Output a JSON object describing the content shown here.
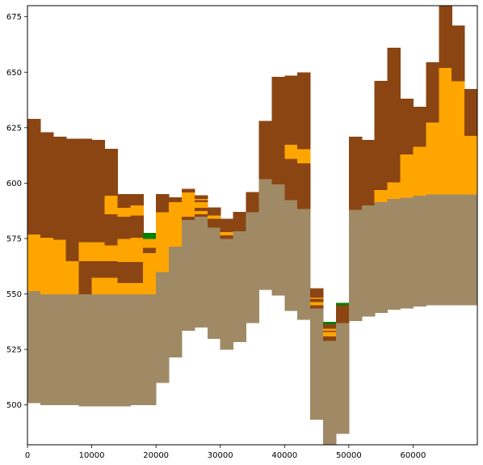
{
  "chart_data": {
    "type": "stacked-bar-cross-section",
    "title": "",
    "xlabel": "",
    "ylabel": "",
    "xlim": [
      0,
      70000
    ],
    "ylim": [
      482,
      680
    ],
    "x_ticks": [
      0,
      10000,
      20000,
      30000,
      40000,
      50000,
      60000
    ],
    "x_tick_labels": [
      "0",
      "10000",
      "20000",
      "30000",
      "40000",
      "50000",
      "60000"
    ],
    "y_ticks": [
      500,
      525,
      550,
      575,
      600,
      625,
      650,
      675
    ],
    "y_tick_labels": [
      "500",
      "525",
      "550",
      "575",
      "600",
      "625",
      "650",
      "675"
    ],
    "column_width": 2000,
    "colors": {
      "brown": "#8b4513",
      "orange": "#ffa500",
      "tan": "#a08a65",
      "green": "#008000"
    },
    "columns": [
      {
        "x": 0,
        "segments": [
          {
            "bottom": 501,
            "top": 551.5,
            "color": "tan"
          },
          {
            "bottom": 551.5,
            "top": 577,
            "color": "orange"
          },
          {
            "bottom": 577,
            "top": 629,
            "color": "brown"
          }
        ]
      },
      {
        "x": 2000,
        "segments": [
          {
            "bottom": 500,
            "top": 550,
            "color": "tan"
          },
          {
            "bottom": 550,
            "top": 575.5,
            "color": "orange"
          },
          {
            "bottom": 575.5,
            "top": 623,
            "color": "brown"
          }
        ]
      },
      {
        "x": 4000,
        "segments": [
          {
            "bottom": 500,
            "top": 550,
            "color": "tan"
          },
          {
            "bottom": 550,
            "top": 574.5,
            "color": "orange"
          },
          {
            "bottom": 574.5,
            "top": 621,
            "color": "brown"
          }
        ]
      },
      {
        "x": 6000,
        "segments": [
          {
            "bottom": 500,
            "top": 550,
            "color": "tan"
          },
          {
            "bottom": 550,
            "top": 565,
            "color": "orange"
          },
          {
            "bottom": 565,
            "top": 573.5,
            "color": "brown"
          },
          {
            "bottom": 573.5,
            "top": 573.5,
            "color": "orange"
          },
          {
            "bottom": 573.5,
            "top": 620,
            "color": "brown"
          }
        ]
      },
      {
        "x": 8000,
        "segments": [
          {
            "bottom": 499.5,
            "top": 550,
            "color": "tan"
          },
          {
            "bottom": 550,
            "top": 565,
            "color": "brown"
          },
          {
            "bottom": 565,
            "top": 573.5,
            "color": "orange"
          },
          {
            "bottom": 573.5,
            "top": 620,
            "color": "brown"
          }
        ]
      },
      {
        "x": 10000,
        "segments": [
          {
            "bottom": 499.5,
            "top": 550,
            "color": "tan"
          },
          {
            "bottom": 550,
            "top": 557.5,
            "color": "orange"
          },
          {
            "bottom": 557.5,
            "top": 565,
            "color": "brown"
          },
          {
            "bottom": 565,
            "top": 573.5,
            "color": "orange"
          },
          {
            "bottom": 573.5,
            "top": 619.5,
            "color": "brown"
          }
        ]
      },
      {
        "x": 12000,
        "segments": [
          {
            "bottom": 499.5,
            "top": 550,
            "color": "tan"
          },
          {
            "bottom": 550,
            "top": 557.5,
            "color": "orange"
          },
          {
            "bottom": 557.5,
            "top": 565,
            "color": "brown"
          },
          {
            "bottom": 565,
            "top": 572,
            "color": "orange"
          },
          {
            "bottom": 572,
            "top": 586,
            "color": "brown"
          },
          {
            "bottom": 586,
            "top": 594.5,
            "color": "orange"
          },
          {
            "bottom": 594.5,
            "top": 615.5,
            "color": "brown"
          }
        ]
      },
      {
        "x": 14000,
        "segments": [
          {
            "bottom": 499.5,
            "top": 550,
            "color": "tan"
          },
          {
            "bottom": 550,
            "top": 555,
            "color": "orange"
          },
          {
            "bottom": 555,
            "top": 564.5,
            "color": "brown"
          },
          {
            "bottom": 564.5,
            "top": 575,
            "color": "orange"
          },
          {
            "bottom": 575,
            "top": 585,
            "color": "brown"
          },
          {
            "bottom": 585,
            "top": 589,
            "color": "orange"
          },
          {
            "bottom": 589,
            "top": 595,
            "color": "brown"
          }
        ]
      },
      {
        "x": 16000,
        "segments": [
          {
            "bottom": 500,
            "top": 550,
            "color": "tan"
          },
          {
            "bottom": 550,
            "top": 555,
            "color": "orange"
          },
          {
            "bottom": 555,
            "top": 564.5,
            "color": "brown"
          },
          {
            "bottom": 564.5,
            "top": 575.5,
            "color": "orange"
          },
          {
            "bottom": 575.5,
            "top": 585.5,
            "color": "brown"
          },
          {
            "bottom": 585.5,
            "top": 590,
            "color": "orange"
          },
          {
            "bottom": 590,
            "top": 595,
            "color": "brown"
          }
        ]
      },
      {
        "x": 18000,
        "segments": [
          {
            "bottom": 500,
            "top": 550,
            "color": "tan"
          },
          {
            "bottom": 550,
            "top": 568.5,
            "color": "orange"
          },
          {
            "bottom": 568.5,
            "top": 571,
            "color": "brown"
          },
          {
            "bottom": 571,
            "top": 575,
            "color": "orange"
          },
          {
            "bottom": 575,
            "top": 577.5,
            "color": "green"
          }
        ]
      },
      {
        "x": 20000,
        "segments": [
          {
            "bottom": 510,
            "top": 560,
            "color": "tan"
          },
          {
            "bottom": 560,
            "top": 587,
            "color": "orange"
          },
          {
            "bottom": 587,
            "top": 595,
            "color": "brown"
          }
        ]
      },
      {
        "x": 22000,
        "segments": [
          {
            "bottom": 521.5,
            "top": 571.5,
            "color": "tan"
          },
          {
            "bottom": 571.5,
            "top": 591.5,
            "color": "orange"
          },
          {
            "bottom": 591.5,
            "top": 593.5,
            "color": "brown"
          }
        ]
      },
      {
        "x": 24000,
        "segments": [
          {
            "bottom": 533.5,
            "top": 583.5,
            "color": "tan"
          },
          {
            "bottom": 583.5,
            "top": 585,
            "color": "brown"
          },
          {
            "bottom": 585,
            "top": 596,
            "color": "orange"
          },
          {
            "bottom": 596,
            "top": 597.5,
            "color": "brown"
          }
        ]
      },
      {
        "x": 26000,
        "segments": [
          {
            "bottom": 535,
            "top": 585,
            "color": "tan"
          },
          {
            "bottom": 585,
            "top": 586,
            "color": "brown"
          },
          {
            "bottom": 586,
            "top": 587.5,
            "color": "orange"
          },
          {
            "bottom": 587.5,
            "top": 589,
            "color": "brown"
          },
          {
            "bottom": 589,
            "top": 591.5,
            "color": "orange"
          },
          {
            "bottom": 591.5,
            "top": 592.5,
            "color": "brown"
          },
          {
            "bottom": 592.5,
            "top": 593,
            "color": "orange"
          },
          {
            "bottom": 593,
            "top": 594.5,
            "color": "brown"
          }
        ]
      },
      {
        "x": 28000,
        "segments": [
          {
            "bottom": 530,
            "top": 580,
            "color": "tan"
          },
          {
            "bottom": 580,
            "top": 584,
            "color": "brown"
          },
          {
            "bottom": 584,
            "top": 585.5,
            "color": "orange"
          },
          {
            "bottom": 585.5,
            "top": 589,
            "color": "brown"
          }
        ]
      },
      {
        "x": 30000,
        "segments": [
          {
            "bottom": 525,
            "top": 575,
            "color": "tan"
          },
          {
            "bottom": 575,
            "top": 576.5,
            "color": "brown"
          },
          {
            "bottom": 576.5,
            "top": 578,
            "color": "orange"
          },
          {
            "bottom": 578,
            "top": 584,
            "color": "brown"
          }
        ]
      },
      {
        "x": 32000,
        "segments": [
          {
            "bottom": 528.5,
            "top": 578.5,
            "color": "tan"
          },
          {
            "bottom": 578.5,
            "top": 587,
            "color": "brown"
          }
        ]
      },
      {
        "x": 34000,
        "segments": [
          {
            "bottom": 537,
            "top": 587,
            "color": "tan"
          },
          {
            "bottom": 587,
            "top": 596,
            "color": "brown"
          }
        ]
      },
      {
        "x": 36000,
        "segments": [
          {
            "bottom": 552,
            "top": 602,
            "color": "tan"
          },
          {
            "bottom": 602,
            "top": 628,
            "color": "brown"
          }
        ]
      },
      {
        "x": 38000,
        "segments": [
          {
            "bottom": 549.5,
            "top": 599.5,
            "color": "tan"
          },
          {
            "bottom": 599.5,
            "top": 648,
            "color": "brown"
          }
        ]
      },
      {
        "x": 40000,
        "segments": [
          {
            "bottom": 542.5,
            "top": 592.5,
            "color": "tan"
          },
          {
            "bottom": 592.5,
            "top": 611,
            "color": "brown"
          },
          {
            "bottom": 611,
            "top": 617.5,
            "color": "orange"
          },
          {
            "bottom": 617.5,
            "top": 648.5,
            "color": "brown"
          }
        ]
      },
      {
        "x": 42000,
        "segments": [
          {
            "bottom": 538.5,
            "top": 588.5,
            "color": "tan"
          },
          {
            "bottom": 588.5,
            "top": 609,
            "color": "brown"
          },
          {
            "bottom": 609,
            "top": 615.5,
            "color": "orange"
          },
          {
            "bottom": 615.5,
            "top": 650,
            "color": "brown"
          }
        ]
      },
      {
        "x": 44000,
        "segments": [
          {
            "bottom": 493.5,
            "top": 543.5,
            "color": "tan"
          },
          {
            "bottom": 543.5,
            "top": 545,
            "color": "brown"
          },
          {
            "bottom": 545,
            "top": 546.5,
            "color": "orange"
          },
          {
            "bottom": 546.5,
            "top": 548,
            "color": "brown"
          },
          {
            "bottom": 548,
            "top": 548.5,
            "color": "orange"
          },
          {
            "bottom": 548.5,
            "top": 552.5,
            "color": "brown"
          }
        ]
      },
      {
        "x": 46000,
        "segments": [
          {
            "bottom": 482,
            "top": 529,
            "color": "tan"
          },
          {
            "bottom": 529,
            "top": 531,
            "color": "brown"
          },
          {
            "bottom": 531,
            "top": 533,
            "color": "orange"
          },
          {
            "bottom": 533,
            "top": 533.5,
            "color": "brown"
          },
          {
            "bottom": 533.5,
            "top": 534.5,
            "color": "orange"
          },
          {
            "bottom": 534.5,
            "top": 536.5,
            "color": "brown"
          },
          {
            "bottom": 536.5,
            "top": 537.5,
            "color": "green"
          }
        ]
      },
      {
        "x": 48000,
        "segments": [
          {
            "bottom": 487,
            "top": 537,
            "color": "tan"
          },
          {
            "bottom": 537,
            "top": 545,
            "color": "brown"
          },
          {
            "bottom": 545,
            "top": 546,
            "color": "green"
          }
        ]
      },
      {
        "x": 50000,
        "segments": [
          {
            "bottom": 538,
            "top": 588,
            "color": "tan"
          },
          {
            "bottom": 588,
            "top": 621,
            "color": "brown"
          }
        ]
      },
      {
        "x": 52000,
        "segments": [
          {
            "bottom": 540,
            "top": 590,
            "color": "tan"
          },
          {
            "bottom": 590,
            "top": 619.5,
            "color": "brown"
          }
        ]
      },
      {
        "x": 54000,
        "segments": [
          {
            "bottom": 541.5,
            "top": 591.5,
            "color": "tan"
          },
          {
            "bottom": 591.5,
            "top": 597,
            "color": "orange"
          },
          {
            "bottom": 597,
            "top": 646,
            "color": "brown"
          }
        ]
      },
      {
        "x": 56000,
        "segments": [
          {
            "bottom": 543,
            "top": 593,
            "color": "tan"
          },
          {
            "bottom": 593,
            "top": 600.5,
            "color": "orange"
          },
          {
            "bottom": 600.5,
            "top": 661,
            "color": "brown"
          }
        ]
      },
      {
        "x": 58000,
        "segments": [
          {
            "bottom": 543.5,
            "top": 593.5,
            "color": "tan"
          },
          {
            "bottom": 593.5,
            "top": 613,
            "color": "orange"
          },
          {
            "bottom": 613,
            "top": 638,
            "color": "brown"
          }
        ]
      },
      {
        "x": 60000,
        "segments": [
          {
            "bottom": 544.5,
            "top": 594.5,
            "color": "tan"
          },
          {
            "bottom": 594.5,
            "top": 616.5,
            "color": "orange"
          },
          {
            "bottom": 616.5,
            "top": 634.5,
            "color": "brown"
          }
        ]
      },
      {
        "x": 62000,
        "segments": [
          {
            "bottom": 545,
            "top": 595,
            "color": "tan"
          },
          {
            "bottom": 595,
            "top": 627.5,
            "color": "orange"
          },
          {
            "bottom": 627.5,
            "top": 654.5,
            "color": "brown"
          }
        ]
      },
      {
        "x": 64000,
        "segments": [
          {
            "bottom": 545,
            "top": 595,
            "color": "tan"
          },
          {
            "bottom": 595,
            "top": 652,
            "color": "orange"
          },
          {
            "bottom": 652,
            "top": 680,
            "color": "brown"
          }
        ]
      },
      {
        "x": 66000,
        "segments": [
          {
            "bottom": 545,
            "top": 595,
            "color": "tan"
          },
          {
            "bottom": 595,
            "top": 646,
            "color": "orange"
          },
          {
            "bottom": 646,
            "top": 671,
            "color": "brown"
          }
        ]
      },
      {
        "x": 68000,
        "segments": [
          {
            "bottom": 545,
            "top": 595,
            "color": "tan"
          },
          {
            "bottom": 595,
            "top": 621.5,
            "color": "orange"
          },
          {
            "bottom": 621.5,
            "top": 642.5,
            "color": "brown"
          }
        ]
      }
    ]
  }
}
